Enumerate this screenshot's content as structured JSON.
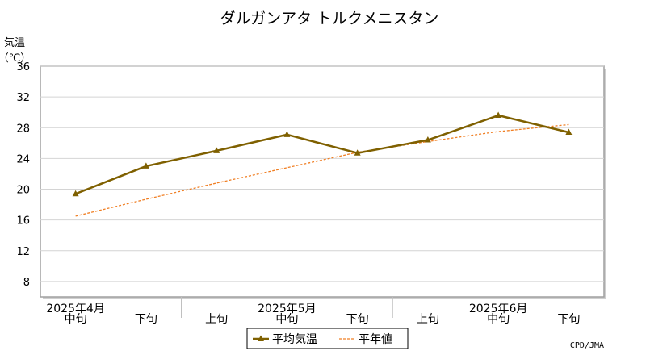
{
  "chart_data": {
    "type": "line",
    "title": "ダルガンアタ トルクメニスタン",
    "ylabel": "気温",
    "yunit": "（℃）",
    "ylim": [
      6,
      36
    ],
    "yticks": [
      8,
      12,
      16,
      20,
      24,
      28,
      32,
      36
    ],
    "grid": true,
    "x": [
      "2025年4月 中旬",
      "2025年4月 下旬",
      "2025年5月 上旬",
      "2025年5月 中旬",
      "2025年5月 下旬",
      "2025年6月 上旬",
      "2025年6月 中旬",
      "2025年6月 下旬"
    ],
    "period_labels": [
      "中旬",
      "下旬",
      "上旬",
      "中旬",
      "下旬",
      "上旬",
      "中旬",
      "下旬"
    ],
    "month_labels": [
      {
        "label": "2025年4月",
        "index": 0
      },
      {
        "label": "2025年5月",
        "index": 3
      },
      {
        "label": "2025年6月",
        "index": 6
      }
    ],
    "series": [
      {
        "name": "平均気温",
        "values": [
          19.4,
          23.0,
          25.0,
          27.1,
          24.7,
          26.4,
          29.6,
          27.4
        ],
        "color": "#7f6000",
        "style": "solid",
        "marker": "triangle"
      },
      {
        "name": "平年値",
        "values": [
          16.5,
          18.7,
          20.8,
          22.8,
          24.8,
          26.2,
          27.5,
          28.4
        ],
        "color": "#f07f24",
        "style": "dashed"
      }
    ],
    "legend_position": "bottom-center",
    "credit": "CPD/JMA"
  },
  "colors": {
    "frame": "#a0a0a0",
    "grid": "#d4d4d4",
    "observed": "#7f6000",
    "normal": "#f07f24"
  }
}
